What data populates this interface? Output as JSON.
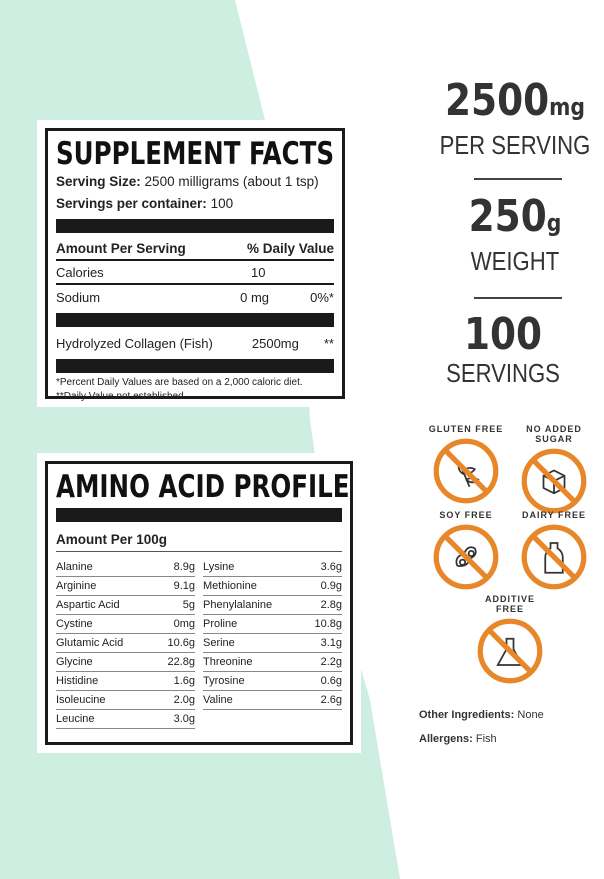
{
  "supplement_facts": {
    "title": "SUPPLEMENT FACTS",
    "serving_size_label": "Serving Size:",
    "serving_size": "2500 milligrams (about 1 tsp)",
    "servings_label": "Servings per container:",
    "servings": "100",
    "header_amount": "Amount Per Serving",
    "header_dv": "% Daily Value",
    "rows": [
      {
        "name": "Calories",
        "amount": "10",
        "dv": ""
      },
      {
        "name": "Sodium",
        "amount": "0 mg",
        "dv": "0%*"
      },
      {
        "name": "Hydrolyzed Collagen (Fish)",
        "amount": "2500mg",
        "dv": "**"
      }
    ],
    "footnote1": "*Percent Daily Values are based on a 2,000 caloric diet.",
    "footnote2": "**Daily Value not established."
  },
  "amino": {
    "title": "AMINO ACID PROFILE",
    "subtitle": "Amount Per 100g",
    "left": [
      {
        "n": "Alanine",
        "v": "8.9g"
      },
      {
        "n": "Arginine",
        "v": "9.1g"
      },
      {
        "n": "Aspartic Acid",
        "v": "5g"
      },
      {
        "n": "Cystine",
        "v": "0mg"
      },
      {
        "n": "Glutamic Acid",
        "v": "10.6g"
      },
      {
        "n": "Glycine",
        "v": "22.8g"
      },
      {
        "n": "Histidine",
        "v": "1.6g"
      },
      {
        "n": "Isoleucine",
        "v": "2.0g"
      },
      {
        "n": "Leucine",
        "v": "3.0g"
      }
    ],
    "right": [
      {
        "n": "Lysine",
        "v": "3.6g"
      },
      {
        "n": "Methionine",
        "v": "0.9g"
      },
      {
        "n": "Phenylalanine",
        "v": "2.8g"
      },
      {
        "n": "Proline",
        "v": "10.8g"
      },
      {
        "n": "Serine",
        "v": "3.1g"
      },
      {
        "n": "Threonine",
        "v": "2.2g"
      },
      {
        "n": "Tyrosine",
        "v": "0.6g"
      },
      {
        "n": "Valine",
        "v": "2.6g"
      }
    ]
  },
  "stats": [
    {
      "value": "2500",
      "unit_small": "mg",
      "label": "PER SERVING"
    },
    {
      "value": "250",
      "unit_small": "g",
      "label": "WEIGHT"
    },
    {
      "value": "100",
      "unit_small": "",
      "label": "SERVINGS"
    }
  ],
  "badges": [
    {
      "label": "GLUTEN FREE",
      "icon": "wheat-icon"
    },
    {
      "label": "NO ADDED SUGAR",
      "icon": "sugar-cube-icon"
    },
    {
      "label": "SOY FREE",
      "icon": "soybean-icon"
    },
    {
      "label": "DAIRY FREE",
      "icon": "milk-bottle-icon"
    },
    {
      "label": "ADDITIVE FREE",
      "icon": "flask-icon"
    }
  ],
  "badge_color": "#e8872a",
  "mint_color": "#cdeee0",
  "other": {
    "ingredients_label": "Other Ingredients:",
    "ingredients": "None",
    "allergens_label": "Allergens:",
    "allergens": "Fish"
  }
}
